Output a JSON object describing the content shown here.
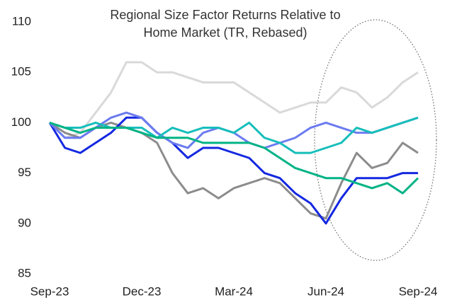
{
  "chart_data": {
    "type": "line",
    "title": [
      "Regional Size Factor Returns Relative to",
      "Home Market (TR, Rebased)"
    ],
    "categories": [
      "Sep-23",
      null,
      null,
      null,
      null,
      null,
      "Dec-23",
      null,
      null,
      null,
      null,
      null,
      "Mar-24",
      null,
      null,
      null,
      null,
      null,
      "Jun-24",
      null,
      null,
      null,
      null,
      null,
      "Sep-24"
    ],
    "ylim": [
      85,
      110
    ],
    "yticks": [
      85,
      90,
      95,
      100,
      105,
      110
    ],
    "grid": false,
    "series": [
      {
        "color": "#d9d9d9",
        "values": [
          100,
          98.5,
          99,
          101,
          103,
          106,
          106,
          105,
          105,
          104.5,
          104,
          104,
          104,
          103,
          102,
          101,
          101.5,
          102,
          102,
          103.5,
          103,
          101.5,
          102.5,
          104,
          105
        ]
      },
      {
        "color": "#8c8c8c",
        "values": [
          100,
          99,
          98.5,
          99.5,
          100,
          99.5,
          99,
          98,
          95,
          93,
          93.5,
          92.5,
          93.5,
          94,
          94.5,
          94,
          92.5,
          91,
          90.5,
          94,
          97,
          95.5,
          96,
          98,
          97
        ]
      },
      {
        "color": "#1428e0",
        "values": [
          100,
          97.5,
          97,
          98,
          99,
          100.5,
          100.5,
          99,
          98,
          96.5,
          97.5,
          97.5,
          97,
          96.5,
          95,
          94.5,
          93,
          92,
          90,
          92.5,
          94.5,
          94.5,
          94.5,
          95,
          95
        ]
      },
      {
        "color": "#6b7bf0",
        "values": [
          100,
          98.5,
          98.5,
          99.5,
          100.5,
          101,
          100.5,
          99,
          98,
          97.5,
          99,
          99.5,
          99,
          98,
          97.5,
          98,
          98.5,
          99.5,
          100,
          99.5,
          99,
          99,
          99.5,
          100,
          100.5
        ]
      },
      {
        "color": "#17bebb",
        "values": [
          100,
          99.5,
          99.5,
          100,
          99.5,
          99.5,
          99.5,
          98.5,
          99.5,
          99,
          99.5,
          99.5,
          99,
          100,
          98.5,
          98,
          97,
          97,
          97.5,
          98,
          99.5,
          99,
          99.5,
          100,
          100.5
        ]
      },
      {
        "color": "#00b386",
        "values": [
          100,
          99.5,
          99,
          99.5,
          99.5,
          99.5,
          99,
          98.5,
          98.5,
          98.5,
          98,
          98,
          98,
          98,
          97.5,
          96.5,
          95.5,
          95,
          94.5,
          94.5,
          94,
          93.5,
          94,
          93,
          94.5
        ]
      }
    ]
  }
}
